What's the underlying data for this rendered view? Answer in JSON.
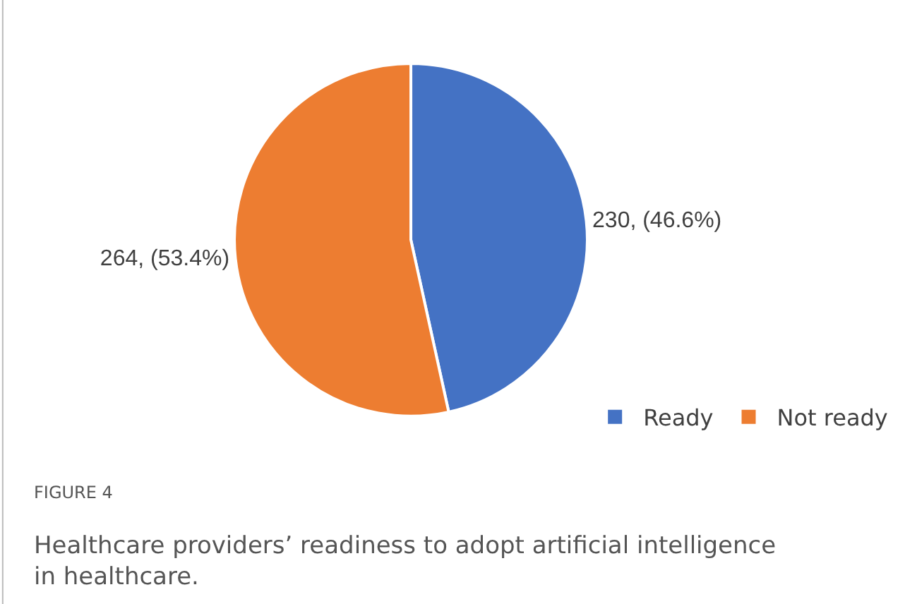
{
  "chart_data": {
    "type": "pie",
    "categories": [
      "Ready",
      "Not ready"
    ],
    "values": [
      230,
      264
    ],
    "colors": [
      "#4472c4",
      "#ed7d31"
    ],
    "value_labels": [
      "230, (46.6%)",
      "264, (53.4%)"
    ],
    "legend": "bottom right",
    "annotations": [
      "FIGURE 4",
      "Healthcare providers’ readiness to adopt artificial intelligence in healthcare."
    ]
  }
}
